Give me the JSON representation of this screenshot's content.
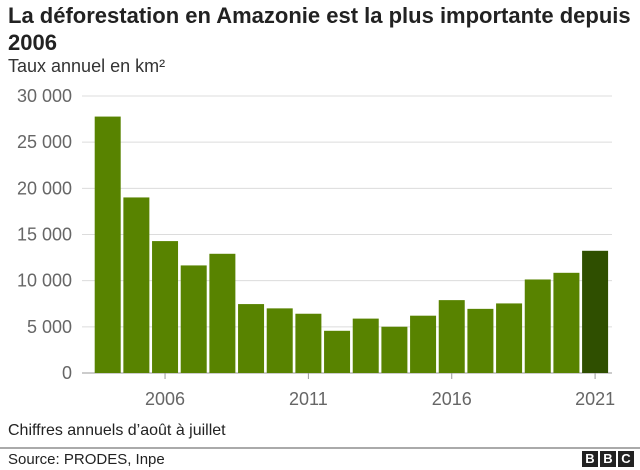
{
  "chart_data": {
    "type": "bar",
    "title": "La déforestation en Amazonie est la plus importante depuis 2006",
    "subtitle": "Taux annuel en km²",
    "categories": [
      2004,
      2005,
      2006,
      2007,
      2008,
      2009,
      2010,
      2011,
      2012,
      2013,
      2014,
      2015,
      2016,
      2017,
      2018,
      2019,
      2020,
      2021
    ],
    "values": [
      27772,
      19014,
      14286,
      11651,
      12911,
      7464,
      7000,
      6418,
      4571,
      5891,
      5012,
      6207,
      7893,
      6947,
      7536,
      10129,
      10851,
      13235
    ],
    "ylim": [
      0,
      30000
    ],
    "yticks": [
      "0",
      "5 000",
      "10 000",
      "15 000",
      "20 000",
      "25 000",
      "30 000"
    ],
    "xticks": [
      "2006",
      "2011",
      "2016",
      "2021"
    ],
    "grid": true,
    "colors": {
      "bar": "#588300",
      "highlight": "#2f4f00",
      "grid": "#dcdcdc"
    },
    "highlight_category": 2021,
    "note": "Chiffres annuels d’août à juillet",
    "source": "Source: PRODES, Inpe"
  },
  "logo": [
    "B",
    "B",
    "C"
  ]
}
